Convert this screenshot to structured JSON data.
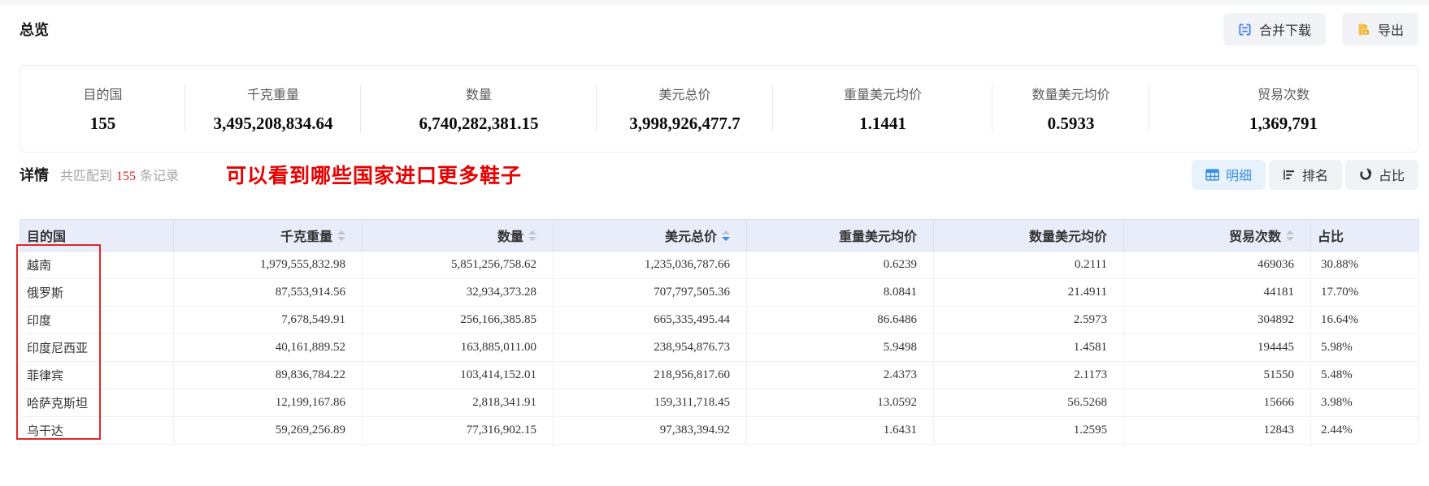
{
  "page": {
    "overview_title": "总览",
    "detail_title": "详情",
    "annotation": "可以看到哪些国家进口更多鞋子"
  },
  "match": {
    "prefix": "共匹配到",
    "count": "155",
    "suffix": "条记录"
  },
  "toolbar": {
    "merge_label": "合并下载",
    "merge_icon": "merge-cells-icon",
    "export_label": "导出",
    "export_icon": "export-file-icon"
  },
  "view_switch": [
    {
      "label": "明细",
      "icon": "table-icon",
      "active": true
    },
    {
      "label": "排名",
      "icon": "ranking-icon",
      "active": false
    },
    {
      "label": "占比",
      "icon": "donut-chart-icon",
      "active": false
    }
  ],
  "summary": {
    "items": [
      {
        "label": "目的国",
        "value": "155"
      },
      {
        "label": "千克重量",
        "value": "3,495,208,834.64"
      },
      {
        "label": "数量",
        "value": "6,740,282,381.15"
      },
      {
        "label": "美元总价",
        "value": "3,998,926,477.7"
      },
      {
        "label": "重量美元均价",
        "value": "1.1441"
      },
      {
        "label": "数量美元均价",
        "value": "0.5933"
      },
      {
        "label": "贸易次数",
        "value": "1,369,791"
      }
    ]
  },
  "table": {
    "columns": [
      {
        "label": "目的国",
        "sortable": false,
        "align": "left"
      },
      {
        "label": "千克重量",
        "sortable": true,
        "sort": "none",
        "align": "right"
      },
      {
        "label": "数量",
        "sortable": true,
        "sort": "none",
        "align": "right"
      },
      {
        "label": "美元总价",
        "sortable": true,
        "sort": "desc",
        "align": "right"
      },
      {
        "label": "重量美元均价",
        "sortable": false,
        "align": "right"
      },
      {
        "label": "数量美元均价",
        "sortable": false,
        "align": "right"
      },
      {
        "label": "贸易次数",
        "sortable": true,
        "sort": "none",
        "align": "right"
      },
      {
        "label": "占比",
        "sortable": false,
        "align": "left"
      }
    ],
    "rows": [
      [
        "越南",
        "1,979,555,832.98",
        "5,851,256,758.62",
        "1,235,036,787.66",
        "0.6239",
        "0.2111",
        "469036",
        "30.88%"
      ],
      [
        "俄罗斯",
        "87,553,914.56",
        "32,934,373.28",
        "707,797,505.36",
        "8.0841",
        "21.4911",
        "44181",
        "17.70%"
      ],
      [
        "印度",
        "7,678,549.91",
        "256,166,385.85",
        "665,335,495.44",
        "86.6486",
        "2.5973",
        "304892",
        "16.64%"
      ],
      [
        "印度尼西亚",
        "40,161,889.52",
        "163,885,011.00",
        "238,954,876.73",
        "5.9498",
        "1.4581",
        "194445",
        "5.98%"
      ],
      [
        "菲律宾",
        "89,836,784.22",
        "103,414,152.01",
        "218,956,817.60",
        "2.4373",
        "2.1173",
        "51550",
        "5.48%"
      ],
      [
        "哈萨克斯坦",
        "12,199,167.86",
        "2,818,341.91",
        "159,311,718.45",
        "13.0592",
        "56.5268",
        "15666",
        "3.98%"
      ],
      [
        "乌干达",
        "59,269,256.89",
        "77,316,902.15",
        "97,383,394.92",
        "1.6431",
        "1.2595",
        "12843",
        "2.44%"
      ]
    ]
  },
  "colors": {
    "accent_blue": "#3a8ee6",
    "sort_active_blue": "#3d8af2",
    "annotation_red": "#e60000",
    "box_red": "#e02725",
    "count_red": "#e02020",
    "header_bg": "#e9edf9",
    "export_orange": "#f7b52c",
    "merge_blue": "#3d7fff"
  }
}
